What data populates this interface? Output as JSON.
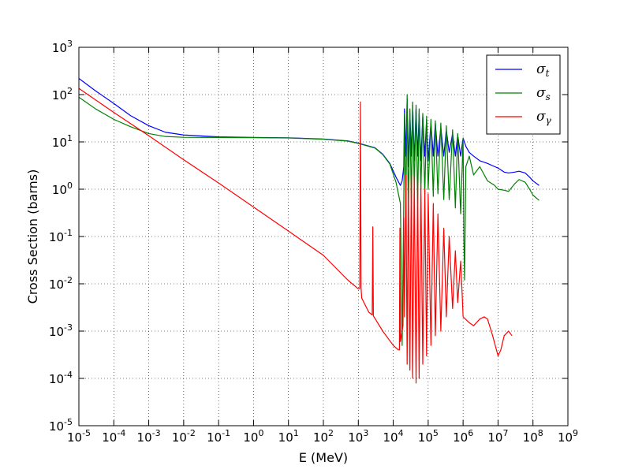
{
  "chart_data": {
    "type": "line",
    "xscale": "log",
    "yscale": "log",
    "xlim": [
      1e-05,
      1000000000.0
    ],
    "ylim": [
      1e-05,
      1000.0
    ],
    "xlabel": "E (MeV)",
    "ylabel": "Cross Section (barns)",
    "grid": true,
    "legend_position": "top-right",
    "x_ticks": [
      {
        "base": "10",
        "exp": "-5"
      },
      {
        "base": "10",
        "exp": "-4"
      },
      {
        "base": "10",
        "exp": "-3"
      },
      {
        "base": "10",
        "exp": "-2"
      },
      {
        "base": "10",
        "exp": "-1"
      },
      {
        "base": "10",
        "exp": "0"
      },
      {
        "base": "10",
        "exp": "1"
      },
      {
        "base": "10",
        "exp": "2"
      },
      {
        "base": "10",
        "exp": "3"
      },
      {
        "base": "10",
        "exp": "4"
      },
      {
        "base": "10",
        "exp": "5"
      },
      {
        "base": "10",
        "exp": "6"
      },
      {
        "base": "10",
        "exp": "7"
      },
      {
        "base": "10",
        "exp": "8"
      },
      {
        "base": "10",
        "exp": "9"
      }
    ],
    "y_ticks": [
      {
        "base": "10",
        "exp": "-5"
      },
      {
        "base": "10",
        "exp": "-4"
      },
      {
        "base": "10",
        "exp": "-3"
      },
      {
        "base": "10",
        "exp": "-2"
      },
      {
        "base": "10",
        "exp": "-1"
      },
      {
        "base": "10",
        "exp": "0"
      },
      {
        "base": "10",
        "exp": "1"
      },
      {
        "base": "10",
        "exp": "2"
      },
      {
        "base": "10",
        "exp": "3"
      }
    ],
    "series": [
      {
        "name": "σt",
        "symbol": "σ",
        "subscript": "t",
        "color": "#0000ff",
        "points": [
          [
            1e-05,
            220
          ],
          [
            3e-05,
            120
          ],
          [
            0.0001,
            65
          ],
          [
            0.0003,
            36
          ],
          [
            0.001,
            22
          ],
          [
            0.003,
            16
          ],
          [
            0.01,
            14
          ],
          [
            0.1,
            12.8
          ],
          [
            1,
            12.4
          ],
          [
            10,
            12.2
          ],
          [
            100,
            11.5
          ],
          [
            500,
            10.5
          ],
          [
            1000,
            9.4
          ],
          [
            3000,
            7.5
          ],
          [
            5000,
            5.5
          ],
          [
            8000,
            3.5
          ],
          [
            12000,
            1.8
          ],
          [
            16000,
            1.2
          ],
          [
            18000,
            1.5
          ],
          [
            20000,
            3
          ],
          [
            21000,
            50
          ],
          [
            23000,
            5
          ],
          [
            25000,
            80
          ],
          [
            27000,
            3
          ],
          [
            30000,
            40
          ],
          [
            33000,
            5
          ],
          [
            36000,
            60
          ],
          [
            40000,
            4
          ],
          [
            45000,
            50
          ],
          [
            50000,
            5
          ],
          [
            55000,
            40
          ],
          [
            62000,
            4
          ],
          [
            70000,
            35
          ],
          [
            80000,
            5
          ],
          [
            90000,
            30
          ],
          [
            100000,
            4
          ],
          [
            120000,
            25
          ],
          [
            140000,
            5
          ],
          [
            160000,
            25
          ],
          [
            190000,
            5
          ],
          [
            230000,
            20
          ],
          [
            280000,
            5
          ],
          [
            330000,
            18
          ],
          [
            400000,
            6
          ],
          [
            500000,
            15
          ],
          [
            600000,
            5
          ],
          [
            700000,
            14
          ],
          [
            850000,
            5
          ],
          [
            1000000,
            12
          ],
          [
            1200000,
            8
          ],
          [
            1500000,
            6
          ],
          [
            2000000,
            5
          ],
          [
            3000000,
            4
          ],
          [
            5000000,
            3.5
          ],
          [
            8000000,
            3
          ],
          [
            10000000,
            2.8
          ],
          [
            15000000,
            2.3
          ],
          [
            20000000,
            2.2
          ],
          [
            30000000,
            2.3
          ],
          [
            40000000,
            2.4
          ],
          [
            60000000,
            2.2
          ],
          [
            80000000,
            1.8
          ],
          [
            100000000,
            1.5
          ],
          [
            150000000,
            1.2
          ]
        ]
      },
      {
        "name": "σs",
        "symbol": "σ",
        "subscript": "s",
        "color": "#008000",
        "points": [
          [
            1e-05,
            88
          ],
          [
            3e-05,
            50
          ],
          [
            0.0001,
            30
          ],
          [
            0.0003,
            21
          ],
          [
            0.001,
            15
          ],
          [
            0.003,
            13
          ],
          [
            0.01,
            12.5
          ],
          [
            0.1,
            12.4
          ],
          [
            1,
            12.3
          ],
          [
            10,
            12.1
          ],
          [
            100,
            11.4
          ],
          [
            500,
            10.4
          ],
          [
            1000,
            9.3
          ],
          [
            3000,
            7.4
          ],
          [
            5000,
            5.4
          ],
          [
            8000,
            3.4
          ],
          [
            12000,
            1.4
          ],
          [
            16000,
            0.5
          ],
          [
            18000,
            0.0005
          ],
          [
            20000,
            0.5
          ],
          [
            21000,
            40
          ],
          [
            23000,
            0.5
          ],
          [
            25000,
            100
          ],
          [
            27000,
            0.3
          ],
          [
            30000,
            50
          ],
          [
            33000,
            0.5
          ],
          [
            36000,
            70
          ],
          [
            40000,
            1
          ],
          [
            45000,
            60
          ],
          [
            50000,
            0.5
          ],
          [
            55000,
            50
          ],
          [
            62000,
            1
          ],
          [
            70000,
            40
          ],
          [
            80000,
            0.8
          ],
          [
            90000,
            35
          ],
          [
            100000,
            1
          ],
          [
            120000,
            30
          ],
          [
            140000,
            0.7
          ],
          [
            160000,
            28
          ],
          [
            190000,
            0.8
          ],
          [
            230000,
            25
          ],
          [
            280000,
            0.6
          ],
          [
            330000,
            22
          ],
          [
            400000,
            0.6
          ],
          [
            500000,
            18
          ],
          [
            600000,
            0.4
          ],
          [
            700000,
            15
          ],
          [
            850000,
            0.3
          ],
          [
            1000000,
            12
          ],
          [
            1050000,
            0.1
          ],
          [
            1100000,
            0.012
          ],
          [
            1200000,
            3
          ],
          [
            1500000,
            5
          ],
          [
            2000000,
            2
          ],
          [
            3000000,
            3
          ],
          [
            5000000,
            1.5
          ],
          [
            8000000,
            1.2
          ],
          [
            10000000,
            1.0
          ],
          [
            15000000,
            0.95
          ],
          [
            20000000,
            0.9
          ],
          [
            30000000,
            1.3
          ],
          [
            40000000,
            1.6
          ],
          [
            60000000,
            1.4
          ],
          [
            80000000,
            1.0
          ],
          [
            100000000,
            0.75
          ],
          [
            150000000,
            0.58
          ]
        ]
      },
      {
        "name": "σγ",
        "symbol": "σ",
        "subscript": "γ",
        "color": "#ff0000",
        "points": [
          [
            1e-05,
            135
          ],
          [
            0.0001,
            42
          ],
          [
            0.001,
            13.5
          ],
          [
            0.01,
            4.2
          ],
          [
            0.1,
            1.35
          ],
          [
            1,
            0.42
          ],
          [
            10,
            0.13
          ],
          [
            100,
            0.04
          ],
          [
            500,
            0.012
          ],
          [
            1000,
            0.0078
          ],
          [
            1100,
            0.008
          ],
          [
            1150,
            70
          ],
          [
            1200,
            0.008
          ],
          [
            1250,
            0.005
          ],
          [
            2000,
            0.0025
          ],
          [
            2500,
            0.0022
          ],
          [
            2600,
            0.16
          ],
          [
            2700,
            0.0021
          ],
          [
            5000,
            0.001
          ],
          [
            10000,
            0.0005
          ],
          [
            14000,
            0.0004
          ],
          [
            15000,
            0.0004
          ],
          [
            15500,
            0.15
          ],
          [
            16000,
            0.0006
          ],
          [
            17000,
            0.0008
          ],
          [
            19000,
            0.0013
          ],
          [
            20000,
            0.25
          ],
          [
            21000,
            0.002
          ],
          [
            23000,
            2
          ],
          [
            25000,
            0.0002
          ],
          [
            27000,
            1.5
          ],
          [
            30000,
            0.00015
          ],
          [
            33000,
            2
          ],
          [
            36000,
            0.0001
          ],
          [
            40000,
            1.8
          ],
          [
            45000,
            8e-05
          ],
          [
            50000,
            1.5
          ],
          [
            55000,
            0.0001
          ],
          [
            62000,
            1.2
          ],
          [
            70000,
            0.0002
          ],
          [
            80000,
            1.0
          ],
          [
            90000,
            0.0003
          ],
          [
            100000,
            0.8
          ],
          [
            120000,
            0.0005
          ],
          [
            140000,
            0.5
          ],
          [
            160000,
            0.0008
          ],
          [
            190000,
            0.3
          ],
          [
            230000,
            0.001
          ],
          [
            280000,
            0.15
          ],
          [
            330000,
            0.002
          ],
          [
            400000,
            0.1
          ],
          [
            500000,
            0.003
          ],
          [
            600000,
            0.05
          ],
          [
            700000,
            0.004
          ],
          [
            850000,
            0.03
          ],
          [
            950000,
            0.005
          ],
          [
            1000000,
            0.002
          ],
          [
            1500000,
            0.0015
          ],
          [
            2000000,
            0.0013
          ],
          [
            3000000,
            0.0018
          ],
          [
            4000000,
            0.002
          ],
          [
            5000000,
            0.0018
          ],
          [
            7000000,
            0.0008
          ],
          [
            9000000,
            0.0004
          ],
          [
            10000000,
            0.0003
          ],
          [
            12000000,
            0.0004
          ],
          [
            15000000,
            0.0008
          ],
          [
            20000000,
            0.001
          ],
          [
            25000000,
            0.0008
          ]
        ]
      }
    ]
  }
}
